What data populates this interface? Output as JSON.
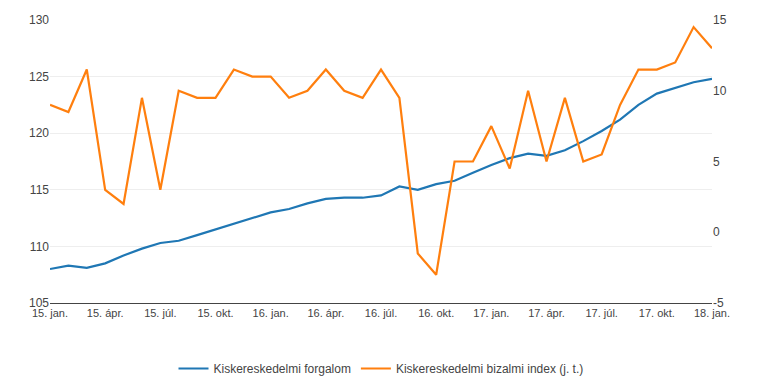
{
  "chart_data": {
    "type": "line",
    "categories": [
      "15. jan.",
      null,
      null,
      "15. ápr.",
      null,
      null,
      "15. júl.",
      null,
      null,
      "15. okt.",
      null,
      null,
      "16. jan.",
      null,
      null,
      "16. ápr.",
      null,
      null,
      "16. júl.",
      null,
      null,
      "16. okt.",
      null,
      null,
      "17. jan.",
      null,
      null,
      "17. ápr.",
      null,
      null,
      "17. júl.",
      null,
      null,
      "17. okt.",
      null,
      null,
      "18. jan."
    ],
    "series": [
      {
        "name": "Kiskereskedelmi forgalom",
        "values": [
          108.0,
          108.3,
          108.1,
          108.5,
          109.2,
          109.8,
          110.3,
          110.5,
          111.0,
          111.5,
          112.0,
          112.5,
          113.0,
          113.3,
          113.8,
          114.2,
          114.3,
          114.3,
          114.5,
          115.3,
          115.0,
          115.5,
          115.8,
          116.5,
          117.2,
          117.8,
          118.2,
          118.0,
          118.5,
          119.3,
          120.2,
          121.2,
          122.5,
          123.5,
          124.0,
          124.5,
          124.8
        ]
      },
      {
        "name": "Kiskereskedelmi bizalmi index (j. t.)",
        "axis": "y2",
        "values": [
          9.0,
          8.5,
          11.5,
          3.0,
          2.0,
          9.5,
          3.0,
          10.0,
          9.5,
          9.5,
          11.5,
          11.0,
          11.0,
          9.5,
          10.0,
          11.5,
          10.0,
          9.5,
          11.5,
          9.5,
          -1.5,
          -3.0,
          5.0,
          5.0,
          7.5,
          4.5,
          10.0,
          5.0,
          9.5,
          5.0,
          5.5,
          9.0,
          11.5,
          11.5,
          12.0,
          14.5,
          13.0
        ]
      }
    ],
    "ylim": [
      105,
      130
    ],
    "yticks": [
      105,
      110,
      115,
      120,
      125,
      130
    ],
    "y2lim": [
      -5,
      15
    ],
    "y2ticks": [
      -5,
      0,
      5,
      10,
      15
    ],
    "grid": true,
    "legend": "bottom"
  }
}
